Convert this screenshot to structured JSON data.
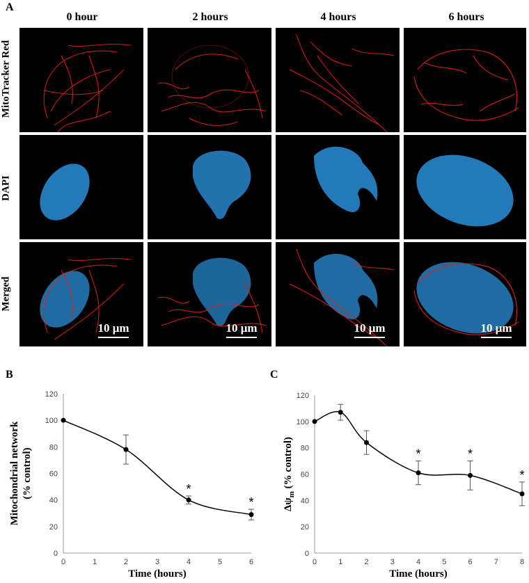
{
  "panel_a": {
    "letter": "A",
    "columns": [
      "0 hour",
      "2 hours",
      "4 hours",
      "6 hours"
    ],
    "rows": [
      "MitoTracker Red",
      "DAPI",
      "Merged"
    ],
    "scale_bar": "10 μm",
    "colors": {
      "mito": "#e0201a",
      "nucleus": "#2a8fd8",
      "background": "#000000"
    }
  },
  "panel_b": {
    "letter": "B"
  },
  "panel_c": {
    "letter": "C"
  },
  "chart_data": [
    {
      "type": "line",
      "panel": "B",
      "xlabel": "Time (hours)",
      "ylabel_line1": "Mitochondrial network",
      "ylabel_line2": "(% control)",
      "x": [
        0,
        2,
        4,
        6
      ],
      "y": [
        100,
        78,
        40,
        29
      ],
      "error": [
        0,
        11,
        3,
        4
      ],
      "significant": [
        false,
        false,
        true,
        true
      ],
      "annotation": "*",
      "xlim": [
        0,
        6
      ],
      "ylim": [
        0,
        120
      ],
      "xticks": [
        0,
        1,
        2,
        3,
        4,
        5,
        6
      ],
      "yticks": [
        0,
        20,
        40,
        60,
        80,
        100,
        120
      ],
      "grid": false,
      "smooth": true
    },
    {
      "type": "line",
      "panel": "C",
      "xlabel": "Time (hours)",
      "ylabel_main": "Δψ",
      "ylabel_sub": "m",
      "ylabel_rest": "(% control)",
      "x": [
        0,
        1,
        2,
        4,
        6,
        8
      ],
      "y": [
        100,
        107,
        84,
        61,
        59,
        45
      ],
      "error": [
        0,
        6,
        9,
        9,
        11,
        9
      ],
      "significant": [
        false,
        false,
        false,
        true,
        true,
        true
      ],
      "annotation": "*",
      "xlim": [
        0,
        8
      ],
      "ylim": [
        0,
        120
      ],
      "xticks": [
        0,
        1,
        2,
        3,
        4,
        5,
        6,
        7,
        8
      ],
      "yticks": [
        0,
        20,
        40,
        60,
        80,
        100,
        120
      ],
      "grid": false,
      "smooth": true
    }
  ]
}
